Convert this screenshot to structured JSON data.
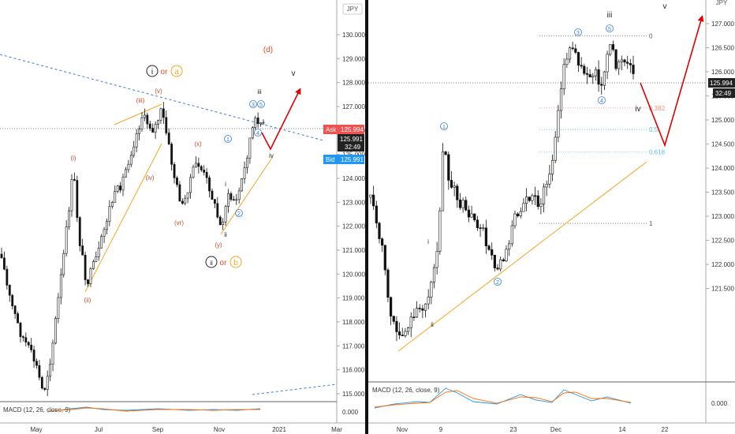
{
  "chart_data": [
    {
      "type": "candlestick",
      "panel": "left",
      "symbol_tag": "JPY",
      "y_ticks": [
        "130.000",
        "129.000",
        "128.000",
        "127.000",
        "126.000",
        "125.000",
        "124.000",
        "123.000",
        "122.000",
        "121.000",
        "120.000",
        "119.000",
        "118.000",
        "117.000",
        "116.000",
        "115.000"
      ],
      "ylim": [
        114.6,
        130.6
      ],
      "x_ticks": [
        "May",
        "Jul",
        "Sep",
        "Nov",
        "2021",
        "Mar"
      ],
      "price_labels": {
        "ask_label": "Ask",
        "ask_value": "125.994",
        "last_value": "125.991",
        "countdown": "32:49",
        "bid_label": "Bid",
        "bid_value": "125.991"
      },
      "wave_labels": {
        "i_or_a_i": "i",
        "or1": "or",
        "i_or_a_a": "a",
        "d": "(d)",
        "v_top": "v",
        "v_paren": "(v)",
        "iii_paren": "(iii)",
        "iii": "iii",
        "c3": "3",
        "c5": "5",
        "c4": "4",
        "x_paren": "(x)",
        "c1": "1",
        "i_small": "i",
        "i_paren": "(i)",
        "iv_paren": "(iv)",
        "iv": "iv",
        "c2": "2",
        "ii": "ii",
        "vr_paren": "(vr)",
        "y_paren": "(y)",
        "ii_paren": "(ii)",
        "ii_or_b_ii": "ii",
        "or2": "or",
        "ii_or_b_b": "b"
      },
      "indicator": {
        "label": "MACD (12, 26, close, 9)",
        "y_ticks": [
          "0.000"
        ]
      }
    },
    {
      "type": "candlestick",
      "panel": "right",
      "symbol_tag": "JPY",
      "y_ticks": [
        "127.000",
        "126.500",
        "126.000",
        "125.500",
        "125.000",
        "124.500",
        "124.000",
        "123.500",
        "123.000",
        "122.500",
        "122.000",
        "121.500"
      ],
      "ylim": [
        121.3,
        127.25
      ],
      "x_ticks": [
        "Nov",
        "9",
        "23",
        "Dec",
        "14",
        "22"
      ],
      "price_labels": {
        "last_value": "125.994",
        "countdown": "32:49"
      },
      "fib_levels": [
        {
          "label": "0",
          "value": 126.75
        },
        {
          "label": "0.382",
          "value": 125.25
        },
        {
          "label": "0.5",
          "value": 124.8
        },
        {
          "label": "0.618",
          "value": 124.34
        },
        {
          "label": "1",
          "value": 122.85
        }
      ],
      "wave_labels": {
        "iii": "iii",
        "v": "v",
        "c3": "3",
        "c5": "5",
        "c4": "4",
        "iv": "iv",
        "c1": "1",
        "i": "i",
        "c2": "2",
        "ii": "ii"
      },
      "indicator": {
        "label": "MACD (12, 26, close, 9)",
        "y_ticks": [
          "0.000"
        ]
      }
    }
  ]
}
